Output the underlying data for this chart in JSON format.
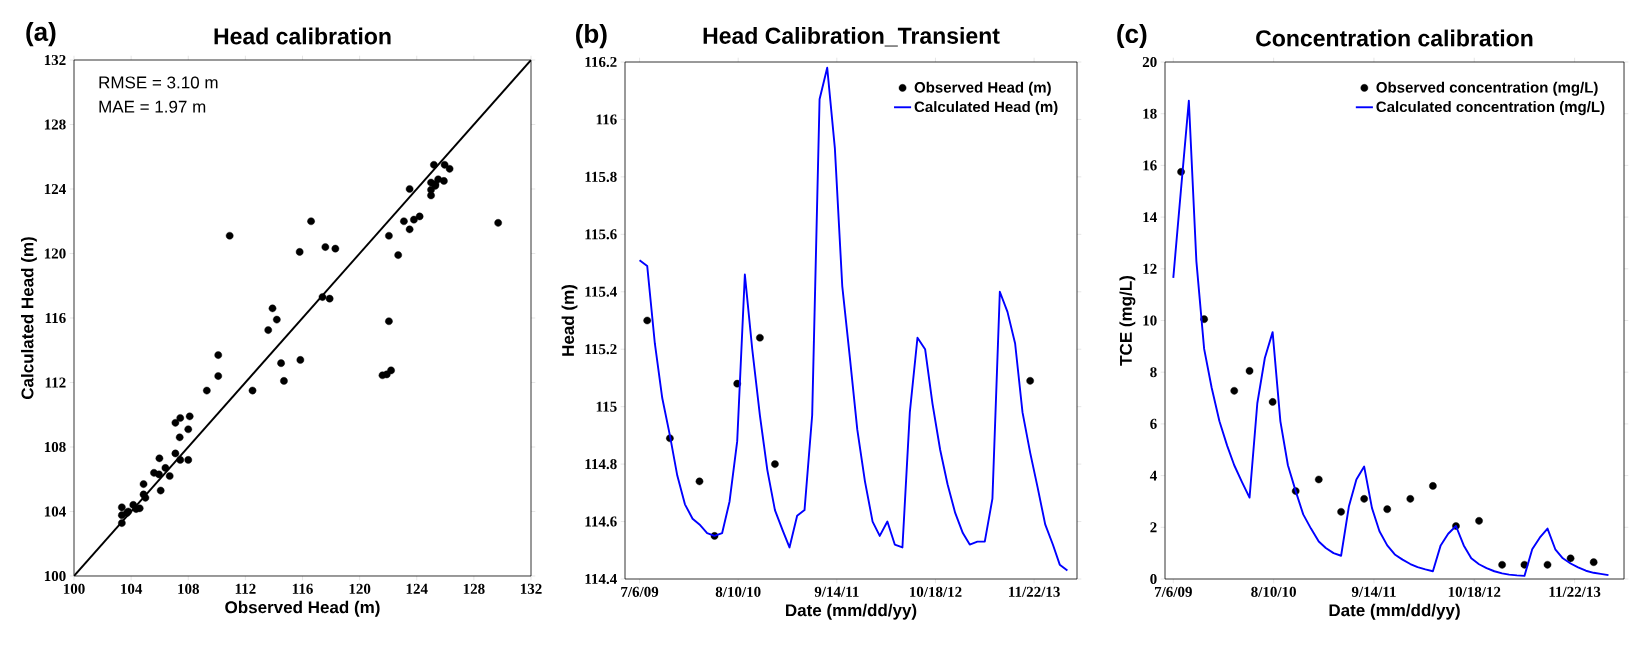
{
  "chart_data": [
    {
      "type": "scatter",
      "title": "Head calibration",
      "xlabel": "Observed Head (m)",
      "ylabel": "Calculated Head (m)",
      "annotations": [
        "(a)",
        "RMSE = 3.10 m",
        "MAE = 1.97 m"
      ],
      "xlim": [
        100,
        132
      ],
      "ylim": [
        100,
        132
      ],
      "xticks": [
        100,
        104,
        108,
        112,
        116,
        120,
        124,
        128,
        132
      ],
      "yticks": [
        100,
        104,
        108,
        112,
        116,
        120,
        124,
        128,
        132
      ],
      "series": [
        {
          "color": "#000000",
          "x": [
            103.35,
            103.35,
            103.35,
            103.7,
            103.8,
            104.15,
            104.35,
            104.6,
            104.87,
            104.87,
            105.0,
            105.6,
            105.98,
            105.95,
            106.07,
            106.4,
            106.7,
            107.1,
            107.1,
            107.4,
            107.44,
            107.44,
            108.0,
            108.0,
            108.1,
            109.3,
            110.1,
            110.1,
            110.9,
            112.5,
            113.6,
            113.9,
            114.2,
            114.5,
            114.7,
            115.8,
            115.85,
            116.6,
            117.4,
            117.6,
            117.9,
            118.3,
            121.6,
            121.9,
            122.2,
            122.05,
            122.05,
            122.7,
            123.1,
            123.5,
            123.5,
            123.8,
            124.2,
            125.0,
            125.0,
            125.0,
            125.2,
            125.3,
            125.3,
            125.5,
            125.9,
            125.95,
            126.3,
            129.7
          ],
          "values": [
            104.26,
            103.77,
            103.28,
            103.9,
            104.0,
            104.41,
            104.15,
            104.2,
            105.7,
            105.06,
            104.85,
            106.4,
            107.3,
            106.3,
            105.3,
            106.7,
            106.2,
            109.5,
            107.6,
            108.6,
            109.8,
            107.2,
            107.2,
            109.1,
            109.9,
            111.5,
            112.4,
            113.7,
            121.1,
            111.5,
            115.25,
            116.6,
            115.9,
            113.2,
            112.1,
            120.1,
            113.4,
            122.0,
            117.3,
            120.4,
            117.2,
            120.3,
            112.45,
            112.5,
            112.75,
            115.8,
            121.1,
            119.9,
            122.0,
            124.0,
            121.5,
            122.1,
            122.3,
            123.6,
            123.95,
            124.4,
            125.5,
            124.2,
            124.3,
            124.6,
            124.5,
            125.5,
            125.25,
            121.9
          ]
        },
        {
          "type": "line",
          "color": "#000000",
          "x": [
            100,
            132
          ],
          "values": [
            100,
            132
          ]
        }
      ]
    },
    {
      "type": "line",
      "title": "Head Calibration_Transient",
      "xlabel": "Date (mm/dd/yy)",
      "ylabel": "Head (m)",
      "annotations": [
        "(b)"
      ],
      "legend": "top right",
      "xlim": [
        "2009-05-08",
        "2014-05-15"
      ],
      "ylim": [
        114.4,
        116.2
      ],
      "xticks": [
        {
          "value": "2009-07-06",
          "label": "7/6/09"
        },
        {
          "value": "2010-08-10",
          "label": "8/10/10"
        },
        {
          "value": "2011-09-14",
          "label": "9/14/11"
        },
        {
          "value": "2012-10-18",
          "label": "10/18/12"
        },
        {
          "value": "2013-11-22",
          "label": "11/22/13"
        }
      ],
      "yticks": [
        114.4,
        114.6,
        114.8,
        115,
        115.2,
        115.4,
        115.6,
        115.8,
        116,
        116.2
      ],
      "series": [
        {
          "name": "Observed Head (m)",
          "type": "scatter",
          "color": "#000000",
          "x": [
            "2009-08-06",
            "2009-11-06",
            "2010-03-06",
            "2010-05-06",
            "2010-08-06",
            "2010-11-06",
            "2011-01-06",
            "2013-11-06"
          ],
          "values": [
            115.3,
            114.89,
            114.74,
            114.55,
            115.08,
            115.24,
            114.8,
            115.09
          ]
        },
        {
          "name": "Calculated Head (m)",
          "color": "#0000ff",
          "x": [
            "2009-07-06",
            "2009-08-06",
            "2009-09-06",
            "2009-10-06",
            "2009-11-06",
            "2009-12-06",
            "2010-01-06",
            "2010-02-06",
            "2010-03-06",
            "2010-04-06",
            "2010-05-06",
            "2010-06-06",
            "2010-07-06",
            "2010-08-06",
            "2010-09-06",
            "2010-10-06",
            "2010-11-06",
            "2010-12-06",
            "2011-01-06",
            "2011-02-06",
            "2011-03-06",
            "2011-04-06",
            "2011-05-06",
            "2011-06-06",
            "2011-07-06",
            "2011-08-06",
            "2011-09-06",
            "2011-10-06",
            "2011-11-06",
            "2011-12-06",
            "2012-01-06",
            "2012-02-06",
            "2012-03-06",
            "2012-04-06",
            "2012-05-06",
            "2012-06-06",
            "2012-07-06",
            "2012-08-06",
            "2012-09-06",
            "2012-10-06",
            "2012-11-06",
            "2012-12-06",
            "2013-01-06",
            "2013-02-06",
            "2013-03-06",
            "2013-04-06",
            "2013-05-06",
            "2013-06-06",
            "2013-07-06",
            "2013-08-06",
            "2013-09-06",
            "2013-10-06",
            "2013-11-06",
            "2013-12-06",
            "2014-01-06",
            "2014-02-06",
            "2014-03-06",
            "2014-04-06"
          ],
          "values": [
            115.51,
            115.49,
            115.22,
            115.03,
            114.9,
            114.76,
            114.66,
            114.61,
            114.59,
            114.56,
            114.55,
            114.56,
            114.67,
            114.88,
            115.46,
            115.2,
            114.97,
            114.78,
            114.64,
            114.57,
            114.51,
            114.62,
            114.64,
            114.97,
            116.07,
            116.18,
            115.9,
            115.42,
            115.17,
            114.92,
            114.74,
            114.6,
            114.55,
            114.6,
            114.52,
            114.51,
            114.98,
            115.24,
            115.2,
            115.01,
            114.85,
            114.73,
            114.63,
            114.56,
            114.52,
            114.53,
            114.53,
            114.68,
            115.4,
            115.33,
            115.22,
            114.98,
            114.84,
            114.72,
            114.59,
            114.52,
            114.45,
            114.43
          ]
        }
      ]
    },
    {
      "type": "line",
      "title": "Concentration calibration",
      "xlabel": "Date (mm/dd/yy)",
      "ylabel": "TCE (mg/L)",
      "annotations": [
        "(c)"
      ],
      "legend": "top right",
      "xlim": [
        "2009-06-03",
        "2014-06-07"
      ],
      "ylim": [
        0,
        20
      ],
      "xticks": [
        {
          "value": "2009-07-06",
          "label": "7/6/09"
        },
        {
          "value": "2010-08-10",
          "label": "8/10/10"
        },
        {
          "value": "2011-09-14",
          "label": "9/14/11"
        },
        {
          "value": "2012-10-18",
          "label": "10/18/12"
        },
        {
          "value": "2013-11-22",
          "label": "11/22/13"
        }
      ],
      "yticks": [
        0,
        2,
        4,
        6,
        8,
        10,
        12,
        14,
        16,
        18,
        20
      ],
      "series": [
        {
          "name": "Observed concentration (mg/L)",
          "type": "scatter",
          "color": "#000000",
          "x": [
            "2009-08-06",
            "2009-11-06",
            "2010-03-06",
            "2010-05-06",
            "2010-08-06",
            "2010-11-06",
            "2011-02-06",
            "2011-05-06",
            "2011-08-06",
            "2011-11-06",
            "2012-02-06",
            "2012-05-06",
            "2012-08-06",
            "2012-11-06",
            "2013-02-06",
            "2013-05-06",
            "2013-08-06",
            "2013-11-06",
            "2014-02-06"
          ],
          "values": [
            15.75,
            10.05,
            7.28,
            8.05,
            6.85,
            3.4,
            3.85,
            2.6,
            3.1,
            2.7,
            3.1,
            3.6,
            2.05,
            2.25,
            0.55,
            0.55,
            0.55,
            0.8,
            0.65
          ]
        },
        {
          "name": "Calculated concentration (mg/L)",
          "color": "#0000ff",
          "x": [
            "2009-07-06",
            "2009-08-06",
            "2009-09-06",
            "2009-10-06",
            "2009-11-06",
            "2009-12-06",
            "2010-01-06",
            "2010-02-06",
            "2010-03-06",
            "2010-04-06",
            "2010-05-06",
            "2010-06-06",
            "2010-07-06",
            "2010-08-06",
            "2010-09-06",
            "2010-10-06",
            "2010-11-06",
            "2010-12-06",
            "2011-01-06",
            "2011-02-06",
            "2011-03-06",
            "2011-04-06",
            "2011-05-06",
            "2011-06-06",
            "2011-07-06",
            "2011-08-06",
            "2011-09-06",
            "2011-10-06",
            "2011-11-06",
            "2011-12-06",
            "2012-01-06",
            "2012-02-06",
            "2012-03-06",
            "2012-04-06",
            "2012-05-06",
            "2012-06-06",
            "2012-07-06",
            "2012-08-06",
            "2012-09-06",
            "2012-10-06",
            "2012-11-06",
            "2012-12-06",
            "2013-01-06",
            "2013-02-06",
            "2013-03-06",
            "2013-04-06",
            "2013-05-06",
            "2013-06-06",
            "2013-07-06",
            "2013-08-06",
            "2013-09-06",
            "2013-10-06",
            "2013-11-06",
            "2013-12-06",
            "2014-01-06",
            "2014-02-06",
            "2014-03-06",
            "2014-04-06"
          ],
          "values": [
            11.65,
            15.1,
            18.5,
            12.3,
            8.9,
            7.4,
            6.1,
            5.15,
            4.4,
            3.75,
            3.15,
            6.8,
            8.55,
            9.55,
            6.1,
            4.4,
            3.4,
            2.5,
            1.95,
            1.45,
            1.2,
            1.0,
            0.9,
            2.8,
            3.85,
            4.35,
            2.75,
            1.85,
            1.3,
            0.95,
            0.75,
            0.58,
            0.46,
            0.37,
            0.3,
            1.3,
            1.75,
            2.05,
            1.3,
            0.8,
            0.57,
            0.42,
            0.3,
            0.22,
            0.17,
            0.14,
            0.12,
            1.15,
            1.6,
            1.95,
            1.15,
            0.8,
            0.6,
            0.45,
            0.32,
            0.24,
            0.2,
            0.15
          ]
        }
      ]
    }
  ]
}
